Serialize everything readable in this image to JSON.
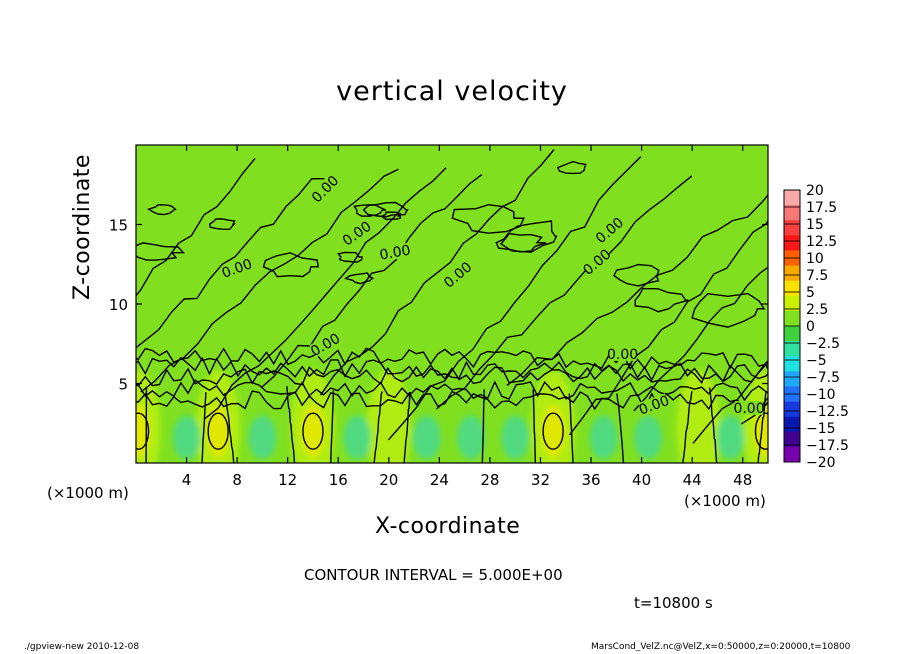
{
  "chart_data": {
    "type": "heatmap",
    "title": "vertical velocity",
    "xlabel": "X-coordinate",
    "ylabel": "Z-coordinate",
    "x_unit": "(×1000 m)",
    "xlim": [
      0,
      50
    ],
    "ylim": [
      0,
      20
    ],
    "x_ticks": [
      4,
      8,
      12,
      16,
      20,
      24,
      28,
      32,
      36,
      40,
      44,
      48
    ],
    "y_ticks": [
      5,
      10,
      15
    ],
    "contour_interval_text": "CONTOUR INTERVAL = 5.000E+00",
    "contour_label": "0.00",
    "time_label": "t=10800 s",
    "colorbar": {
      "levels": [
        20,
        17.5,
        15,
        12.5,
        10,
        7.5,
        5,
        2.5,
        0,
        -2.5,
        -5,
        -7.5,
        -10,
        -12.5,
        -15,
        -17.5,
        -20
      ],
      "level_labels": [
        "20",
        "17.5",
        "15",
        "12.5",
        "10",
        "7.5",
        "5",
        "2.5",
        "0",
        "−2.5",
        "−5",
        "−7.5",
        "−10",
        "−12.5",
        "−15",
        "−17.5",
        "−20"
      ],
      "colors": [
        "#f8a8a8",
        "#f87878",
        "#f84040",
        "#f81818",
        "#f86000",
        "#f8a800",
        "#f8e000",
        "#c8f000",
        "#80e020",
        "#40d040",
        "#30e0a0",
        "#20e0e0",
        "#20a8f8",
        "#2070f8",
        "#1838e0",
        "#0818b0",
        "#400090",
        "#7800b0"
      ]
    },
    "updraft_cells": [
      {
        "x": 0.2,
        "z": 2.0,
        "value": 7.5
      },
      {
        "x": 6.5,
        "z": 2.0,
        "value": 7.5
      },
      {
        "x": 14.0,
        "z": 2.0,
        "value": 7.5
      },
      {
        "x": 33.0,
        "z": 2.0,
        "value": 7.5
      },
      {
        "x": 49.8,
        "z": 2.0,
        "value": 7.5
      }
    ]
  },
  "footer": {
    "left": "./gpview-new   2010-12-08",
    "right": "MarsCond_VelZ.nc@VelZ,x=0:50000,z=0:20000,t=10800"
  }
}
